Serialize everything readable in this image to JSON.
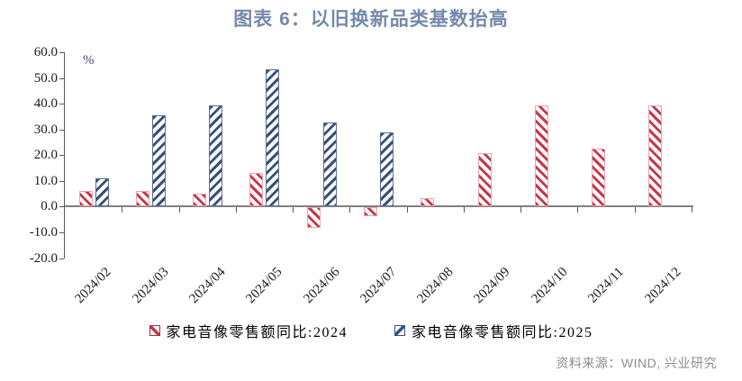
{
  "title": "图表 6：以旧换新品类基数抬高",
  "source_note": "资料来源：WIND, 兴业研究",
  "colors": {
    "title": "#7589AB",
    "axis": "#595959",
    "zero_line": "#808080",
    "source_text": "#8C8C8C",
    "series_2024_stripe": "#C9354A",
    "series_2024_border": "#EBA3AE",
    "series_2025_stripe": "#36517B",
    "series_2025_border": "#5C6E92"
  },
  "chart_data": {
    "type": "bar",
    "title": "图表 6：以旧换新品类基数抬高",
    "unit_label": "%",
    "categories": [
      "2024/02",
      "2024/03",
      "2024/04",
      "2024/05",
      "2024/06",
      "2024/07",
      "2024/08",
      "2024/09",
      "2024/10",
      "2024/11",
      "2024/12"
    ],
    "series": [
      {
        "name": "家电音像零售额同比:2024",
        "hatch": "\\",
        "stripe_color": "#C9354A",
        "border_color": "#EBA3AE",
        "legend_border_color": "#9A3040",
        "values": [
          6.0,
          6.0,
          4.9,
          13.2,
          -8.0,
          -3.2,
          3.3,
          20.7,
          39.5,
          22.5,
          39.5
        ]
      },
      {
        "name": "家电音像零售额同比:2025",
        "hatch": "/",
        "stripe_color": "#36517B",
        "border_color": "#5C6E92",
        "legend_border_color": "#36517B",
        "values": [
          10.9,
          35.5,
          39.5,
          53.5,
          32.8,
          29.0,
          null,
          null,
          null,
          null,
          null
        ]
      }
    ],
    "ylim": [
      -20,
      60
    ],
    "ytick_step": 10,
    "ytick_decimals": 1,
    "grid": false,
    "legend_position": "bottom"
  }
}
